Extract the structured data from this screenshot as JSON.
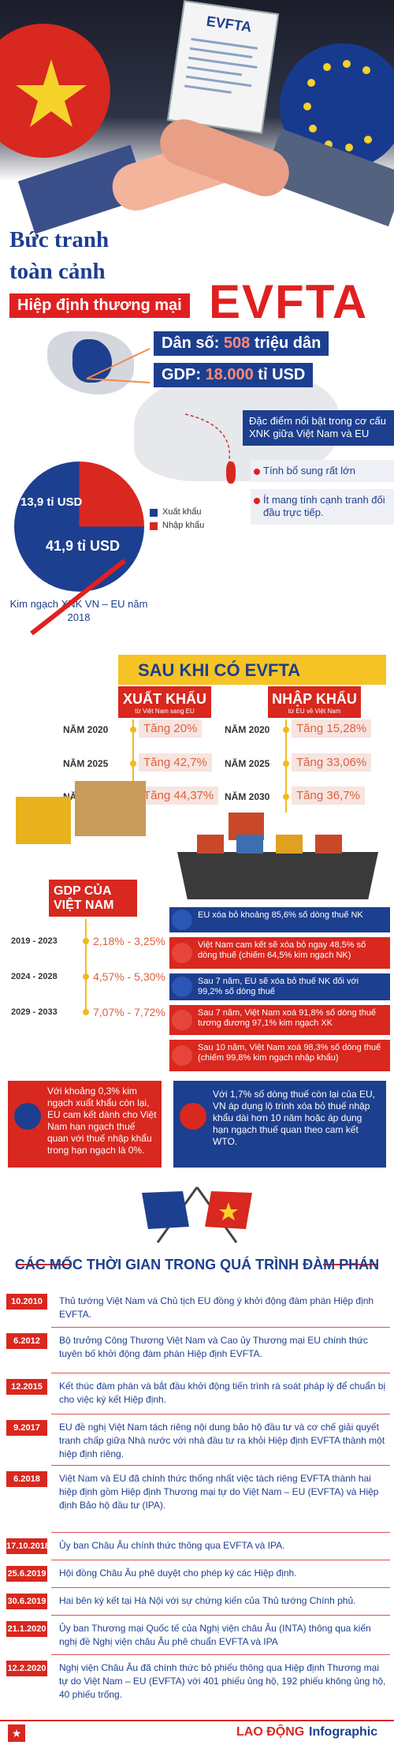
{
  "hero": {
    "document_label": "EVFTA",
    "title_line1": "Bức tranh",
    "title_line2": "toàn cảnh",
    "subtitle": "Hiệp định thương mại",
    "title_big": "EVFTA"
  },
  "overview": {
    "population_prefix": "Dân số: ",
    "population_value": "508",
    "population_suffix": " triệu dân",
    "gdp_prefix": "GDP: ",
    "gdp_value": "18.000",
    "gdp_suffix": " tỉ USD",
    "pie_import": "13,9 tỉ USD",
    "pie_export": "41,9 tỉ USD",
    "pie_import_share": 0.249,
    "legend_export": "Xuất khẩu",
    "legend_import": "Nhập khẩu",
    "caption": "Kim ngạch XNK VN – EU năm 2018",
    "features_heading": "Đặc điểm nổi bật trong cơ cấu XNK giữa Việt Nam và EU",
    "feature1": "Tính bổ sung rất lớn",
    "feature2": "Ít mang tính cạnh tranh đối đầu trực tiếp."
  },
  "after": {
    "banner": "SAU KHI CÓ EVFTA",
    "export_title": "XUẤT KHẨU",
    "export_sub": "từ Việt Nam sang EU",
    "import_title": "NHẬP KHẨU",
    "import_sub": "từ EU về Việt Nam",
    "export_rows": [
      {
        "year": "NĂM 2020",
        "value": "Tăng 20%"
      },
      {
        "year": "NĂM 2025",
        "value": "Tăng 42,7%"
      },
      {
        "year": "NĂM 2030",
        "value": "Tăng 44,37%"
      }
    ],
    "import_rows": [
      {
        "year": "NĂM 2020",
        "value": "Tăng 15,28%"
      },
      {
        "year": "NĂM 2025",
        "value": "Tăng 33,06%"
      },
      {
        "year": "NĂM 2030",
        "value": "Tăng 36,7%"
      }
    ],
    "gdp_title": "GDP CỦA VIỆT NAM",
    "gdp_rows": [
      {
        "period": "2019 - 2023",
        "value": "2,18% - 3,25%"
      },
      {
        "period": "2024 - 2028",
        "value": "4,57% - 5,30%"
      },
      {
        "period": "2029 - 2033",
        "value": "7,07% - 7,72%"
      }
    ],
    "tariff_rows": [
      {
        "text": "EU xóa bỏ khoảng 85,6% số dòng thuế NK",
        "side": "eu"
      },
      {
        "text": "Việt Nam cam kết sẽ xóa bỏ ngay 48,5% số dòng thuế (chiếm 64,5% kim ngạch NK)",
        "side": "vn"
      },
      {
        "text": "Sau 7 năm, EU sẽ xóa bỏ thuế NK đối với 99,2% số dòng thuế",
        "side": "eu"
      },
      {
        "text": "Sau 7 năm, Việt Nam xoá 91,8% số dòng thuế tương đương 97,1% kim ngạch XK",
        "side": "vn"
      },
      {
        "text": "Sau 10 năm, Việt Nam xoá 98,3% số dòng thuế (chiếm 99,8% kim ngạch nhập khẩu)",
        "side": "vn"
      }
    ],
    "eu_box": "Với khoảng 0,3% kim ngạch xuất khẩu còn lại, EU cam kết dành cho Việt Nam hạn ngạch thuế quan với thuế nhập khẩu trong hạn ngạch là 0%.",
    "vn_box": "Với 1,7% số dòng thuế còn lại của EU, VN áp dụng lộ trình xóa bỏ thuế nhập khẩu dài hơn 10 năm hoặc áp dụng hạn ngạch thuế quan theo cam kết WTO."
  },
  "timeline": {
    "title": "CÁC MỐC THỜI GIAN TRONG QUÁ TRÌNH ĐÀM PHÁN",
    "events": [
      {
        "date": "10.2010",
        "text": "Thủ tướng Việt Nam và Chủ tịch EU đồng ý khởi động đàm phán Hiệp định EVFTA."
      },
      {
        "date": "6.2012",
        "text": "Bộ trưởng Công Thương Việt Nam và Cao ủy Thương mại EU chính thức tuyên bố khởi động đàm phán Hiệp định EVFTA."
      },
      {
        "date": "12.2015",
        "text": "Kết thúc đàm phán và bắt đầu khởi động tiến trình rà soát pháp lý để chuẩn bị cho việc ký kết Hiệp định."
      },
      {
        "date": "9.2017",
        "text": "EU đề nghị Việt Nam tách riêng nội dung bảo hộ đầu tư và cơ chế giải quyết tranh chấp giữa Nhà nước với nhà đầu tư ra khỏi Hiệp định EVFTA thành một hiệp định riêng."
      },
      {
        "date": "6.2018",
        "text": "Việt Nam và EU đã chính thức thống nhất việc tách riêng EVFTA thành hai hiệp định gồm Hiệp định Thương mại tự do Việt Nam – EU (EVFTA) và Hiệp định Bảo hộ đầu tư (IPA)."
      },
      {
        "date": "17.10.2018",
        "text": "Ủy ban Châu Âu chính thức thông qua EVFTA và IPA."
      },
      {
        "date": "25.6.2019",
        "text": "Hội đồng Châu Âu phê duyệt cho phép ký các Hiệp định."
      },
      {
        "date": "30.6.2019",
        "text": "Hai bên ký kết tại Hà Nội với sự chứng kiến của Thủ tướng Chính phủ."
      },
      {
        "date": "21.1.2020",
        "text": "Ủy ban Thương mại Quốc tế của Nghị viện châu Âu (INTA) thông qua kiến nghị đề Nghị viện châu Âu phê chuẩn EVFTA và IPA"
      },
      {
        "date": "12.2.2020",
        "text": "Nghị viện Châu Âu đã chính thức bỏ phiếu thông qua Hiệp định Thương mại tự do Việt Nam – EU (EVFTA) với 401 phiếu ủng hộ, 192 phiếu không ủng hộ, 40 phiếu trống."
      }
    ]
  },
  "footer": {
    "brand": "LAO ĐỘNG",
    "brand_suffix": "Infographic"
  },
  "colors": {
    "red": "#d8281f",
    "blue": "#1d3f8f",
    "yellow": "#f6c325"
  }
}
